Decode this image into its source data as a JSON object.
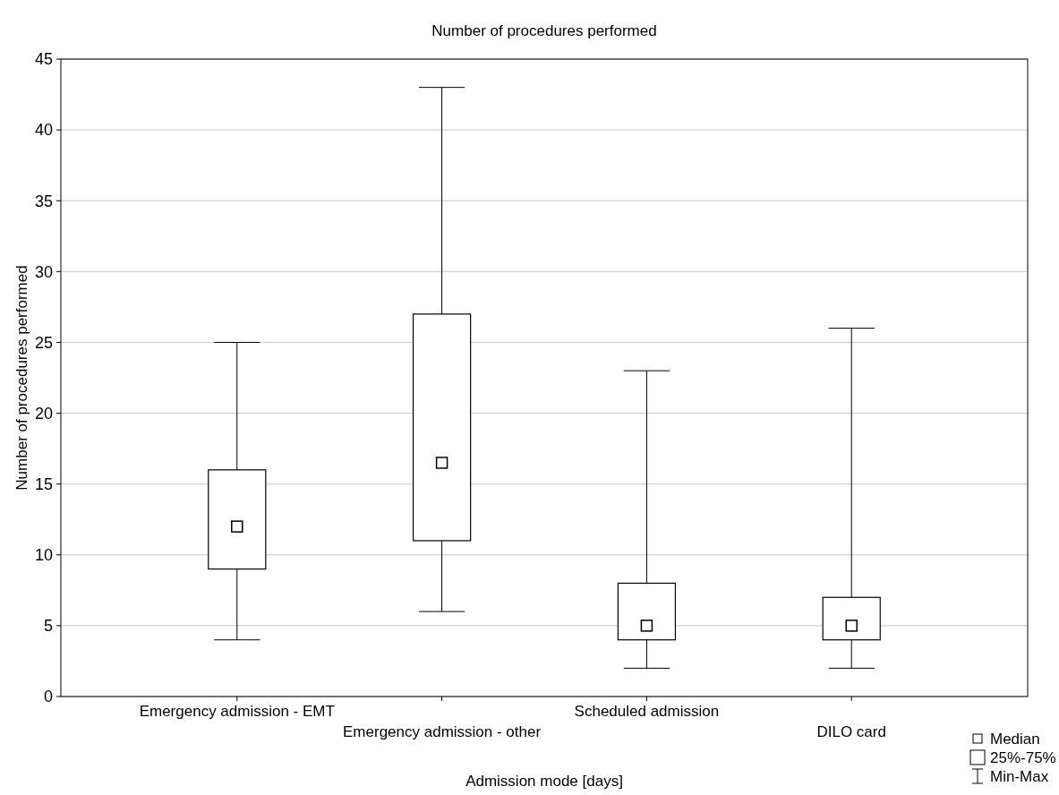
{
  "chart_data": {
    "type": "box",
    "title": "Number of procedures performed",
    "xlabel": "Admission mode [days]",
    "ylabel": "Number of procedures performed",
    "categories": [
      "Emergency admission - EMT",
      "Emergency admission - other",
      "Scheduled admission",
      "DILO card"
    ],
    "boxes": [
      {
        "low": 4,
        "q1": 9,
        "median": 12,
        "q3": 16,
        "high": 25
      },
      {
        "low": 6,
        "q1": 11,
        "median": 16.5,
        "q3": 27,
        "high": 43
      },
      {
        "low": 2,
        "q1": 4,
        "median": 5,
        "q3": 8,
        "high": 23
      },
      {
        "low": 2,
        "q1": 4,
        "median": 5,
        "q3": 7,
        "high": 26
      }
    ],
    "color": "#000000",
    "ylim": [
      0,
      45
    ],
    "yticks": [
      0,
      5,
      10,
      15,
      20,
      25,
      30,
      35,
      40,
      45
    ],
    "grid": "y",
    "annotations": [
      "Median",
      "25%-75%",
      "Min-Max"
    ]
  }
}
